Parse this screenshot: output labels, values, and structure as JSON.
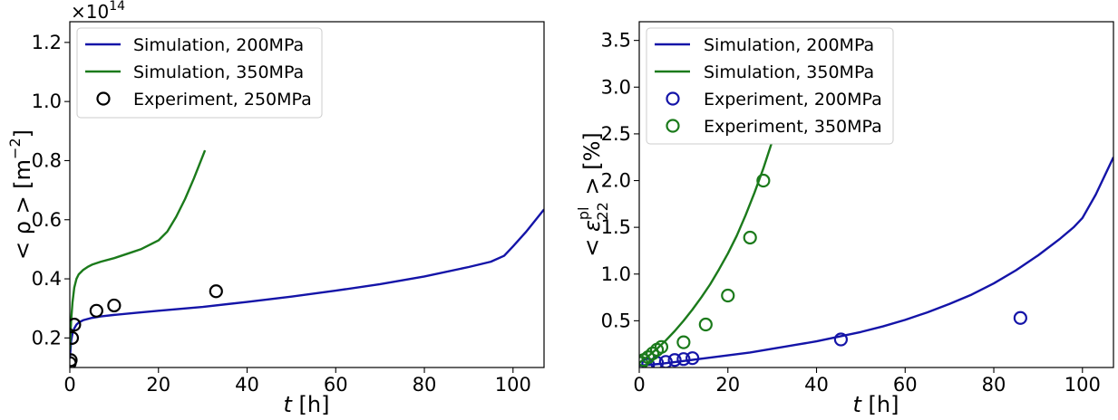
{
  "chart_data": [
    {
      "type": "line",
      "name": "dislocation-density",
      "offset_text": {
        "base": "×10",
        "exponent": "14"
      },
      "ylabel": {
        "prefix": "< ρ >  [m",
        "exponent": "−2",
        "suffix": "]"
      },
      "xlabel": {
        "var": "t",
        "unit": " [h]"
      },
      "xlim": [
        0,
        107
      ],
      "ylim": [
        0.1,
        1.27
      ],
      "xticks": [
        0,
        20,
        40,
        60,
        80,
        100
      ],
      "xtick_labels": [
        "0",
        "20",
        "40",
        "60",
        "80",
        "100"
      ],
      "yticks": [
        0.2,
        0.4,
        0.6,
        0.8,
        1.0,
        1.2
      ],
      "ytick_labels": [
        "0.2",
        "0.4",
        "0.6",
        "0.8",
        "1.0",
        "1.2"
      ],
      "series": [
        {
          "name": "Simulation, 200MPa",
          "kind": "line",
          "color": "#1414a8",
          "x": [
            0,
            0.3,
            0.6,
            1,
            1.5,
            2,
            3,
            5,
            7,
            10,
            15,
            20,
            30,
            40,
            50,
            60,
            70,
            80,
            90,
            95,
            98,
            100,
            103,
            107
          ],
          "y": [
            0.13,
            0.19,
            0.215,
            0.232,
            0.245,
            0.252,
            0.26,
            0.268,
            0.273,
            0.278,
            0.285,
            0.292,
            0.305,
            0.322,
            0.34,
            0.36,
            0.382,
            0.408,
            0.44,
            0.458,
            0.478,
            0.51,
            0.56,
            0.635
          ]
        },
        {
          "name": "Simulation, 350MPa",
          "kind": "line",
          "color": "#1b7a1b",
          "x": [
            0,
            0.3,
            0.6,
            1,
            1.5,
            2,
            3,
            4,
            5,
            7,
            10,
            13,
            16,
            20,
            22,
            24,
            26,
            28,
            30.5
          ],
          "y": [
            0.16,
            0.26,
            0.32,
            0.37,
            0.4,
            0.415,
            0.43,
            0.44,
            0.448,
            0.458,
            0.47,
            0.485,
            0.5,
            0.53,
            0.56,
            0.61,
            0.67,
            0.74,
            0.835
          ]
        },
        {
          "name": "Experiment, 250MPa",
          "kind": "scatter",
          "color": "#000000",
          "x": [
            0,
            0.2,
            0.5,
            1,
            6,
            10,
            33
          ],
          "y": [
            0.115,
            0.125,
            0.2,
            0.245,
            0.292,
            0.31,
            0.358
          ]
        }
      ],
      "legend": {
        "position": "top-left",
        "entries": [
          "Simulation, 200MPa",
          "Simulation, 350MPa",
          "Experiment, 250MPa"
        ]
      }
    },
    {
      "type": "line",
      "name": "plastic-strain",
      "ylabel": {
        "prefix": "< ε",
        "superscript": "pl",
        "subscript": "22",
        "suffix": " >  [%]"
      },
      "xlabel": {
        "var": "t",
        "unit": " [h]"
      },
      "xlim": [
        0,
        107
      ],
      "ylim": [
        0,
        3.7
      ],
      "xticks": [
        0,
        20,
        40,
        60,
        80,
        100
      ],
      "xtick_labels": [
        "0",
        "20",
        "40",
        "60",
        "80",
        "100"
      ],
      "yticks": [
        0.5,
        1.0,
        1.5,
        2.0,
        2.5,
        3.0,
        3.5
      ],
      "ytick_labels": [
        "0.5",
        "1.0",
        "1.5",
        "2.0",
        "2.5",
        "3.0",
        "3.5"
      ],
      "series": [
        {
          "name": "Simulation, 200MPa",
          "kind": "line",
          "color": "#1414a8",
          "x": [
            0,
            5,
            10,
            15,
            20,
            25,
            30,
            35,
            40,
            45,
            50,
            55,
            60,
            65,
            70,
            75,
            80,
            85,
            90,
            95,
            98,
            100,
            103,
            107
          ],
          "y": [
            0.02,
            0.04,
            0.07,
            0.1,
            0.13,
            0.16,
            0.2,
            0.24,
            0.28,
            0.33,
            0.38,
            0.44,
            0.51,
            0.59,
            0.68,
            0.78,
            0.9,
            1.04,
            1.2,
            1.38,
            1.5,
            1.6,
            1.85,
            2.25
          ]
        },
        {
          "name": "Simulation, 350MPa",
          "kind": "line",
          "color": "#1b7a1b",
          "x": [
            0,
            2,
            4,
            6,
            8,
            10,
            12,
            14,
            16,
            18,
            20,
            22,
            24,
            26,
            28,
            30,
            30.8
          ],
          "y": [
            0.05,
            0.12,
            0.2,
            0.29,
            0.39,
            0.5,
            0.62,
            0.75,
            0.89,
            1.05,
            1.22,
            1.41,
            1.63,
            1.87,
            2.13,
            2.42,
            2.52
          ]
        },
        {
          "name": "Experiment, 200MPa",
          "kind": "scatter",
          "color": "#1414a8",
          "x": [
            2,
            4,
            6,
            8,
            10,
            12,
            45.5,
            86
          ],
          "y": [
            0.03,
            0.05,
            0.06,
            0.08,
            0.09,
            0.1,
            0.3,
            0.53
          ]
        },
        {
          "name": "Experiment, 350MPa",
          "kind": "scatter",
          "color": "#1b7a1b",
          "x": [
            0.5,
            1,
            2,
            3,
            4,
            5,
            10,
            15,
            20,
            25,
            28
          ],
          "y": [
            0.05,
            0.08,
            0.11,
            0.15,
            0.19,
            0.22,
            0.27,
            0.46,
            0.77,
            1.39,
            2.0
          ]
        }
      ],
      "legend": {
        "position": "top-left",
        "entries": [
          "Simulation, 200MPa",
          "Simulation, 350MPa",
          "Experiment, 200MPa",
          "Experiment, 350MPa"
        ]
      }
    }
  ]
}
